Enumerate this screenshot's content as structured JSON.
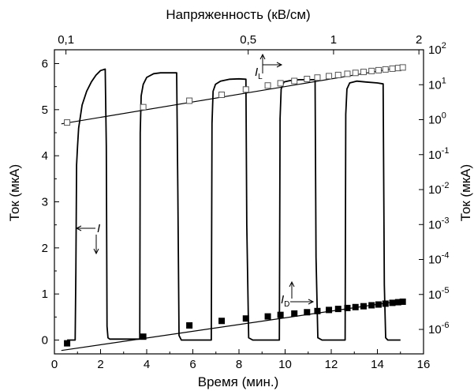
{
  "chart_data": {
    "type": "line",
    "title": "",
    "xlabel": "Время (мин.)",
    "ylabel_left": "Ток (мкА)",
    "ylabel_right": "Ток (мкА)",
    "xlabel_top": "Напряженность (кВ/см)",
    "xlim": [
      0,
      16
    ],
    "ylim_left": [
      -0.3,
      6.3
    ],
    "ylim_right_log10": [
      -6.7,
      2
    ],
    "x_ticks": [
      "0",
      "2",
      "4",
      "6",
      "8",
      "10",
      "12",
      "14",
      "16"
    ],
    "y_left_ticks": [
      "0",
      "1",
      "2",
      "3",
      "4",
      "5",
      "6"
    ],
    "y_right_ticks": [
      {
        "base": "10",
        "exp": "-6",
        "value": -6
      },
      {
        "base": "10",
        "exp": "-5",
        "value": -5
      },
      {
        "base": "10",
        "exp": "-4",
        "value": -4
      },
      {
        "base": "10",
        "exp": "-3",
        "value": -3
      },
      {
        "base": "10",
        "exp": "-2",
        "value": -2
      },
      {
        "base": "10",
        "exp": "-1",
        "value": -1
      },
      {
        "base": "10",
        "exp": "0",
        "value": 0
      },
      {
        "base": "10",
        "exp": "1",
        "value": 1
      },
      {
        "base": "10",
        "exp": "2",
        "value": 2
      }
    ],
    "top_ticks": [
      {
        "label": "0,1",
        "x": 0.5
      },
      {
        "label": "0,5",
        "x": 8.4
      },
      {
        "label": "1",
        "x": 12.1
      },
      {
        "label": "2",
        "x": 15.8
      }
    ],
    "series": [
      {
        "name": "I",
        "axis": "left",
        "marker": "none",
        "x": [
          0.55,
          0.9,
          0.93,
          0.96,
          1.0,
          1.05,
          1.2,
          1.4,
          1.6,
          1.8,
          2.0,
          2.2,
          2.25,
          2.28,
          2.32,
          2.4,
          3.0,
          3.7,
          3.72,
          3.76,
          3.85,
          4.0,
          4.3,
          4.6,
          5.0,
          5.3,
          5.35,
          5.4,
          5.5,
          6.0,
          6.8,
          6.83,
          6.88,
          6.98,
          7.2,
          7.6,
          8.0,
          8.3,
          8.34,
          8.42,
          8.6,
          9.2,
          9.75,
          9.78,
          9.83,
          9.95,
          10.2,
          10.6,
          11.0,
          11.3,
          11.34,
          11.42,
          11.6,
          12.1,
          12.6,
          12.63,
          12.68,
          12.8,
          13.1,
          13.5,
          14.0,
          14.25,
          14.3,
          14.36,
          14.45,
          15.0
        ],
        "values": [
          0.0,
          0.0,
          1.5,
          3.8,
          4.2,
          4.6,
          5.1,
          5.4,
          5.6,
          5.75,
          5.85,
          5.88,
          4.2,
          0.3,
          0.05,
          0.02,
          0.02,
          0.02,
          4.5,
          5.3,
          5.55,
          5.7,
          5.78,
          5.8,
          5.8,
          5.8,
          3.2,
          0.1,
          0.0,
          0.0,
          0.0,
          4.7,
          5.4,
          5.55,
          5.62,
          5.66,
          5.67,
          5.66,
          2.5,
          0.05,
          0.0,
          0.0,
          0.0,
          4.8,
          5.45,
          5.6,
          5.63,
          5.65,
          5.65,
          5.65,
          1.8,
          0.05,
          0.0,
          0.0,
          0.0,
          4.9,
          5.45,
          5.58,
          5.62,
          5.6,
          5.58,
          5.56,
          1.2,
          0.05,
          0.0,
          0.0
        ]
      },
      {
        "name": "I_L",
        "axis": "right",
        "marker": "open-square",
        "x": [
          0.55,
          3.85,
          5.85,
          7.25,
          8.3,
          9.25,
          9.8,
          10.4,
          10.95,
          11.4,
          11.9,
          12.3,
          12.7,
          13.05,
          13.4,
          13.75,
          14.05,
          14.35,
          14.65,
          14.9,
          15.1
        ],
        "values": [
          0.83,
          2.28,
          3.48,
          5.15,
          7.3,
          9.5,
          11.0,
          12.8,
          14.6,
          16.0,
          17.6,
          19.0,
          20.5,
          21.8,
          23.2,
          24.7,
          26.0,
          27.4,
          28.8,
          30.0,
          31.2
        ]
      },
      {
        "name": "I_D",
        "axis": "right",
        "marker": "filled-square",
        "x": [
          0.55,
          3.85,
          5.85,
          7.25,
          8.3,
          9.25,
          9.8,
          10.4,
          10.95,
          11.4,
          11.9,
          12.3,
          12.7,
          13.05,
          13.4,
          13.75,
          14.05,
          14.35,
          14.65,
          14.9,
          15.1
        ],
        "values": [
          4e-07,
          6.2e-07,
          1.3e-06,
          1.75e-06,
          2.05e-06,
          2.35e-06,
          2.6e-06,
          2.85e-06,
          3.1e-06,
          3.35e-06,
          3.6e-06,
          3.85e-06,
          4.1e-06,
          4.35e-06,
          4.6e-06,
          4.9e-06,
          5.15e-06,
          5.45e-06,
          5.75e-06,
          6e-06,
          6.2e-06
        ]
      }
    ],
    "fit_lines": [
      {
        "axis": "right",
        "x": [
          0.3,
          15.2
        ],
        "values": [
          0.76,
          33.0
        ]
      },
      {
        "axis": "right",
        "x": [
          0.3,
          15.2
        ],
        "values": [
          2.5e-07,
          6.8e-06
        ]
      }
    ],
    "annotations": [
      {
        "text": "I",
        "sub": ""
      },
      {
        "text": "I",
        "sub": "L"
      },
      {
        "text": "I",
        "sub": "D"
      }
    ],
    "grid": false,
    "legend": "none"
  }
}
